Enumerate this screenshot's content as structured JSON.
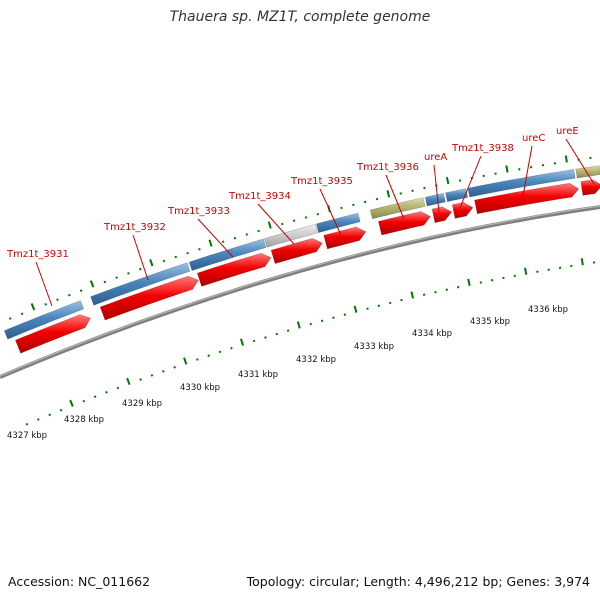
{
  "title": "Thauera sp. MZ1T, complete genome",
  "footer": {
    "accession": "Accession: NC_011662",
    "stats": "Topology: circular; Length: 4,496,212 bp; Genes: 3,974"
  },
  "colors": {
    "label_red": "#cc0000",
    "tick_green": "#007700",
    "backbone_gray": "#7f7f7f",
    "cds_red": "#ff0000",
    "gene_blue": "#4a86bd",
    "gene_olive": "#b6b474",
    "gene_gray": "#cbcbcb"
  },
  "scale_labels": [
    "4327 kbp",
    "4328 kbp",
    "4329 kbp",
    "4330 kbp",
    "4331 kbp",
    "4332 kbp",
    "4333 kbp",
    "4334 kbp",
    "4335 kbp",
    "4336 kbp"
  ],
  "gene_labels": [
    "Tmz1t_3931",
    "Tmz1t_3932",
    "Tmz1t_3933",
    "Tmz1t_3934",
    "Tmz1t_3935",
    "Tmz1t_3936",
    "ureA",
    "Tmz1t_3938",
    "ureC",
    "ureE"
  ]
}
